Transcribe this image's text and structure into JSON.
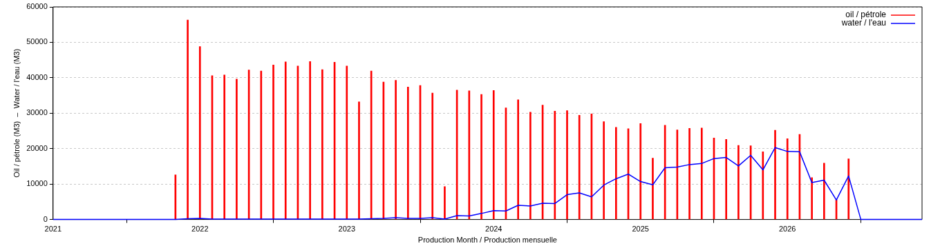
{
  "chart_data": {
    "type": "bar",
    "xlabel": "Production Month / Production mensuelle",
    "ylabel": "Oil / pétrole (M3)  –  Water / l'eau (M3)",
    "xlim": [
      "2021-01",
      "2026-12"
    ],
    "xticks": [
      "2021",
      "2022",
      "2023",
      "2024",
      "2025",
      "2026"
    ],
    "ylim": [
      0,
      60000
    ],
    "yticks": [
      0,
      10000,
      20000,
      30000,
      40000,
      50000,
      60000
    ],
    "grid": "y",
    "legend": "top right",
    "series": [
      {
        "name": "oil / pétrole",
        "color": "#ff0000",
        "x": [
          "2021-11",
          "2021-12",
          "2022-01",
          "2022-02",
          "2022-03",
          "2022-04",
          "2022-05",
          "2022-06",
          "2022-07",
          "2022-08",
          "2022-09",
          "2022-10",
          "2022-11",
          "2022-12",
          "2023-01",
          "2023-02",
          "2023-03",
          "2023-04",
          "2023-05",
          "2023-06",
          "2023-07",
          "2023-08",
          "2023-09",
          "2023-10",
          "2023-11",
          "2023-12",
          "2024-01",
          "2024-02",
          "2024-03",
          "2024-04",
          "2024-05",
          "2024-06",
          "2024-07",
          "2024-08",
          "2024-09",
          "2024-10",
          "2024-11",
          "2024-12",
          "2025-01",
          "2025-02",
          "2025-03",
          "2025-04",
          "2025-05",
          "2025-06",
          "2025-07",
          "2025-08",
          "2025-09",
          "2025-10",
          "2025-11",
          "2025-12",
          "2026-01",
          "2026-02",
          "2026-03",
          "2026-04",
          "2026-05",
          "2026-06"
        ],
        "values": [
          12600,
          56300,
          48800,
          40600,
          40800,
          39600,
          42200,
          41900,
          43600,
          44500,
          43300,
          44600,
          42300,
          44400,
          43300,
          33200,
          41900,
          38800,
          39300,
          37400,
          37800,
          35700,
          9300,
          36500,
          36300,
          35300,
          36400,
          31500,
          33800,
          30300,
          32300,
          30600,
          30700,
          29400,
          29800,
          27600,
          26000,
          25600,
          27100,
          17300,
          26600,
          25300,
          25700,
          25800,
          23000,
          22600,
          20900,
          20800,
          19100,
          25200,
          22800,
          24000,
          11800,
          15900,
          5500,
          17100
        ]
      },
      {
        "name": "water / l'eau",
        "type": "line",
        "color": "#0000ff",
        "x": [
          "2021-01",
          "2021-02",
          "2021-03",
          "2021-04",
          "2021-05",
          "2021-06",
          "2021-07",
          "2021-08",
          "2021-09",
          "2021-10",
          "2021-11",
          "2021-12",
          "2022-01",
          "2022-02",
          "2022-03",
          "2022-04",
          "2022-05",
          "2022-06",
          "2022-07",
          "2022-08",
          "2022-09",
          "2022-10",
          "2022-11",
          "2022-12",
          "2023-01",
          "2023-02",
          "2023-03",
          "2023-04",
          "2023-05",
          "2023-06",
          "2023-07",
          "2023-08",
          "2023-09",
          "2023-10",
          "2023-11",
          "2023-12",
          "2024-01",
          "2024-02",
          "2024-03",
          "2024-04",
          "2024-05",
          "2024-06",
          "2024-07",
          "2024-08",
          "2024-09",
          "2024-10",
          "2024-11",
          "2024-12",
          "2025-01",
          "2025-02",
          "2025-03",
          "2025-04",
          "2025-05",
          "2025-06",
          "2025-07",
          "2025-08",
          "2025-09",
          "2025-10",
          "2025-11",
          "2025-12",
          "2026-01",
          "2026-02",
          "2026-03",
          "2026-04",
          "2026-05",
          "2026-06",
          "2026-07",
          "2026-08",
          "2026-09",
          "2026-10",
          "2026-11",
          "2026-12"
        ],
        "values": [
          0,
          0,
          0,
          0,
          0,
          0,
          0,
          0,
          0,
          0,
          0,
          200,
          300,
          100,
          100,
          100,
          100,
          100,
          100,
          100,
          100,
          100,
          100,
          100,
          100,
          100,
          200,
          300,
          500,
          300,
          300,
          500,
          100,
          1100,
          1000,
          1700,
          2500,
          2400,
          4000,
          3800,
          4600,
          4500,
          7000,
          7500,
          6400,
          9700,
          11500,
          12800,
          10700,
          9800,
          14600,
          14800,
          15500,
          15800,
          17200,
          17500,
          15100,
          18100,
          14000,
          20300,
          19200,
          19100,
          10400,
          11100,
          5500,
          12300,
          0,
          0,
          0,
          0,
          0,
          0
        ]
      }
    ]
  }
}
